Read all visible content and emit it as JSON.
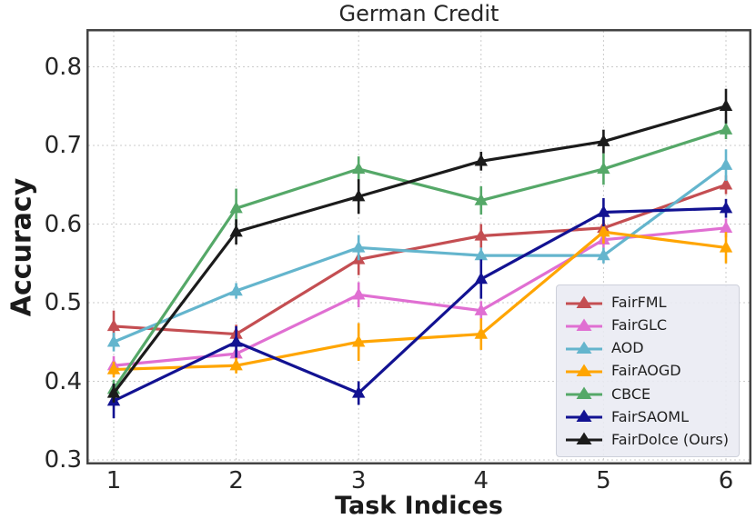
{
  "chart_data": {
    "type": "line",
    "title": "German Credit",
    "xlabel": "Task Indices",
    "ylabel": "Accuracy",
    "x": [
      1,
      2,
      3,
      4,
      5,
      6
    ],
    "x_tick_labels": [
      "1",
      "2",
      "3",
      "4",
      "5",
      "6"
    ],
    "y_ticks": [
      0.3,
      0.4,
      0.5,
      0.6,
      0.7,
      0.8
    ],
    "y_tick_labels": [
      "0.3",
      "0.4",
      "0.5",
      "0.6",
      "0.7",
      "0.8"
    ],
    "ylim": [
      0.292,
      0.848
    ],
    "grid": "dashed-light-gray",
    "marker": "triangle-up",
    "error_bars": true,
    "legend_position": "lower right",
    "colors": {
      "grid": "#cbcbcb",
      "spine": "#434343",
      "text": "#262626",
      "legend_bg": "#e9ebf2"
    },
    "series": [
      {
        "name": "FairFML",
        "color": "#c44e52",
        "values": [
          0.47,
          0.46,
          0.555,
          0.585,
          0.595,
          0.65
        ],
        "errors": [
          0.02,
          0.012,
          0.02,
          0.015,
          0.01,
          0.012
        ]
      },
      {
        "name": "FairGLC",
        "color": "#e06fd2",
        "values": [
          0.42,
          0.435,
          0.51,
          0.49,
          0.58,
          0.595
        ],
        "errors": [
          0.012,
          0.01,
          0.016,
          0.012,
          0.01,
          0.012
        ]
      },
      {
        "name": "AOD",
        "color": "#64b5cd",
        "values": [
          0.45,
          0.515,
          0.57,
          0.56,
          0.56,
          0.675
        ],
        "errors": [
          0.012,
          0.01,
          0.016,
          0.01,
          0.01,
          0.02
        ]
      },
      {
        "name": "FairAOGD",
        "color": "#ffa500",
        "values": [
          0.415,
          0.42,
          0.45,
          0.46,
          0.59,
          0.57
        ],
        "errors": [
          0.01,
          0.01,
          0.024,
          0.02,
          0.015,
          0.02
        ]
      },
      {
        "name": "CBCE",
        "color": "#55a868",
        "values": [
          0.39,
          0.62,
          0.67,
          0.63,
          0.67,
          0.72
        ],
        "errors": [
          0.012,
          0.025,
          0.016,
          0.018,
          0.02,
          0.012
        ]
      },
      {
        "name": "FairSAOML",
        "color": "#121292",
        "values": [
          0.375,
          0.45,
          0.385,
          0.53,
          0.615,
          0.62
        ],
        "errors": [
          0.022,
          0.02,
          0.015,
          0.025,
          0.018,
          0.012
        ]
      },
      {
        "name": "FairDolce (Ours)",
        "color": "#1b1b1b",
        "values": [
          0.385,
          0.59,
          0.635,
          0.68,
          0.705,
          0.75
        ],
        "errors": [
          0.012,
          0.016,
          0.022,
          0.012,
          0.015,
          0.022
        ]
      }
    ]
  }
}
